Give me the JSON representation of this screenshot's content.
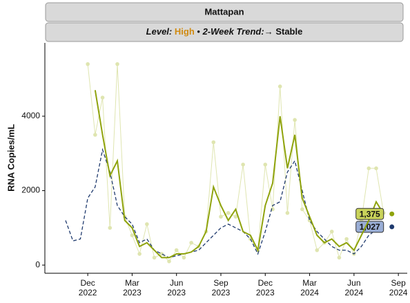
{
  "chart_data": {
    "type": "line",
    "title": "Mattapan",
    "subtitle": {
      "level_label": "Level:",
      "level": "High",
      "separator": "•",
      "trend_label": "2-Week Trend:",
      "trend_arrow": "→",
      "trend": "Stable"
    },
    "y_label": "RNA Copies/mL",
    "x": [
      -1.5,
      -1,
      -0.5,
      0,
      0.5,
      1,
      1.5,
      2,
      2.5,
      3,
      3.5,
      4,
      4.5,
      5,
      5.5,
      6,
      6.5,
      7,
      7.5,
      8,
      8.5,
      9,
      9.5,
      10,
      10.5,
      11,
      11.5,
      12,
      12.5,
      13,
      13.5,
      14,
      14.5,
      15,
      15.5,
      16,
      16.5,
      17,
      17.5,
      18,
      18.5,
      19,
      19.5,
      20
    ],
    "xlim": [
      -2.9,
      21.6
    ],
    "xticks": [
      {
        "value": 0,
        "label": "Dec\n2022"
      },
      {
        "value": 3,
        "label": "Mar\n2023"
      },
      {
        "value": 6,
        "label": "Jun\n2023"
      },
      {
        "value": 9,
        "label": "Sep\n2023"
      },
      {
        "value": 12,
        "label": "Dec\n2023"
      },
      {
        "value": 15,
        "label": "Mar\n2024"
      },
      {
        "value": 18,
        "label": "Jun\n2024"
      },
      {
        "value": 21,
        "label": "Sep\n2024"
      }
    ],
    "ylim": [
      -220,
      5970
    ],
    "yticks": [
      0,
      2000,
      4000
    ],
    "series": [
      {
        "style": "points",
        "color": "#dfe5b0",
        "values": [
          null,
          null,
          null,
          5400,
          3500,
          4500,
          1000,
          5400,
          1300,
          800,
          300,
          1100,
          200,
          300,
          100,
          400,
          200,
          600,
          500,
          900,
          3300,
          1300,
          1400,
          1300,
          2700,
          700,
          400,
          2700,
          1500,
          4800,
          1400,
          3900,
          1500,
          1200,
          400,
          600,
          900,
          200,
          700,
          300,
          1200,
          2600,
          2600,
          1400
        ]
      },
      {
        "style": "dashed",
        "color": "#1f3a6e",
        "values": [
          1200,
          650,
          700,
          1800,
          2100,
          3100,
          2500,
          1600,
          1300,
          1100,
          600,
          700,
          400,
          300,
          200,
          250,
          300,
          350,
          400,
          600,
          800,
          1000,
          1100,
          1000,
          900,
          700,
          300,
          900,
          1600,
          1700,
          2500,
          2800,
          2000,
          1200,
          900,
          700,
          500,
          400,
          400,
          300,
          500,
          800,
          950,
          1027
        ],
        "value_labels": [
          null,
          null,
          null,
          null,
          null,
          null,
          null,
          null,
          null,
          null,
          null,
          null,
          null,
          null,
          null,
          null,
          null,
          null,
          null,
          null,
          null,
          null,
          null,
          null,
          null,
          null,
          null,
          null,
          null,
          null,
          null,
          null,
          null,
          null,
          null,
          null,
          null,
          null,
          null,
          null,
          null,
          null,
          null,
          "1,027"
        ],
        "label_fill": "#9aaed6"
      },
      {
        "style": "solid",
        "color": "#8fa30c",
        "values": [
          null,
          null,
          null,
          null,
          4700,
          3500,
          2400,
          2800,
          1200,
          1000,
          500,
          600,
          400,
          200,
          200,
          300,
          300,
          350,
          500,
          900,
          2100,
          1600,
          1200,
          1500,
          900,
          800,
          400,
          1600,
          2200,
          4000,
          2600,
          3500,
          1800,
          1300,
          800,
          600,
          700,
          500,
          600,
          400,
          800,
          1200,
          1700,
          1375
        ],
        "value_labels": [
          null,
          null,
          null,
          null,
          null,
          null,
          null,
          null,
          null,
          null,
          null,
          null,
          null,
          null,
          null,
          null,
          null,
          null,
          null,
          null,
          null,
          null,
          null,
          null,
          null,
          null,
          null,
          null,
          null,
          null,
          null,
          null,
          null,
          null,
          null,
          null,
          null,
          null,
          null,
          null,
          null,
          null,
          null,
          "1,375"
        ],
        "label_fill": "#c9d35a"
      }
    ]
  }
}
